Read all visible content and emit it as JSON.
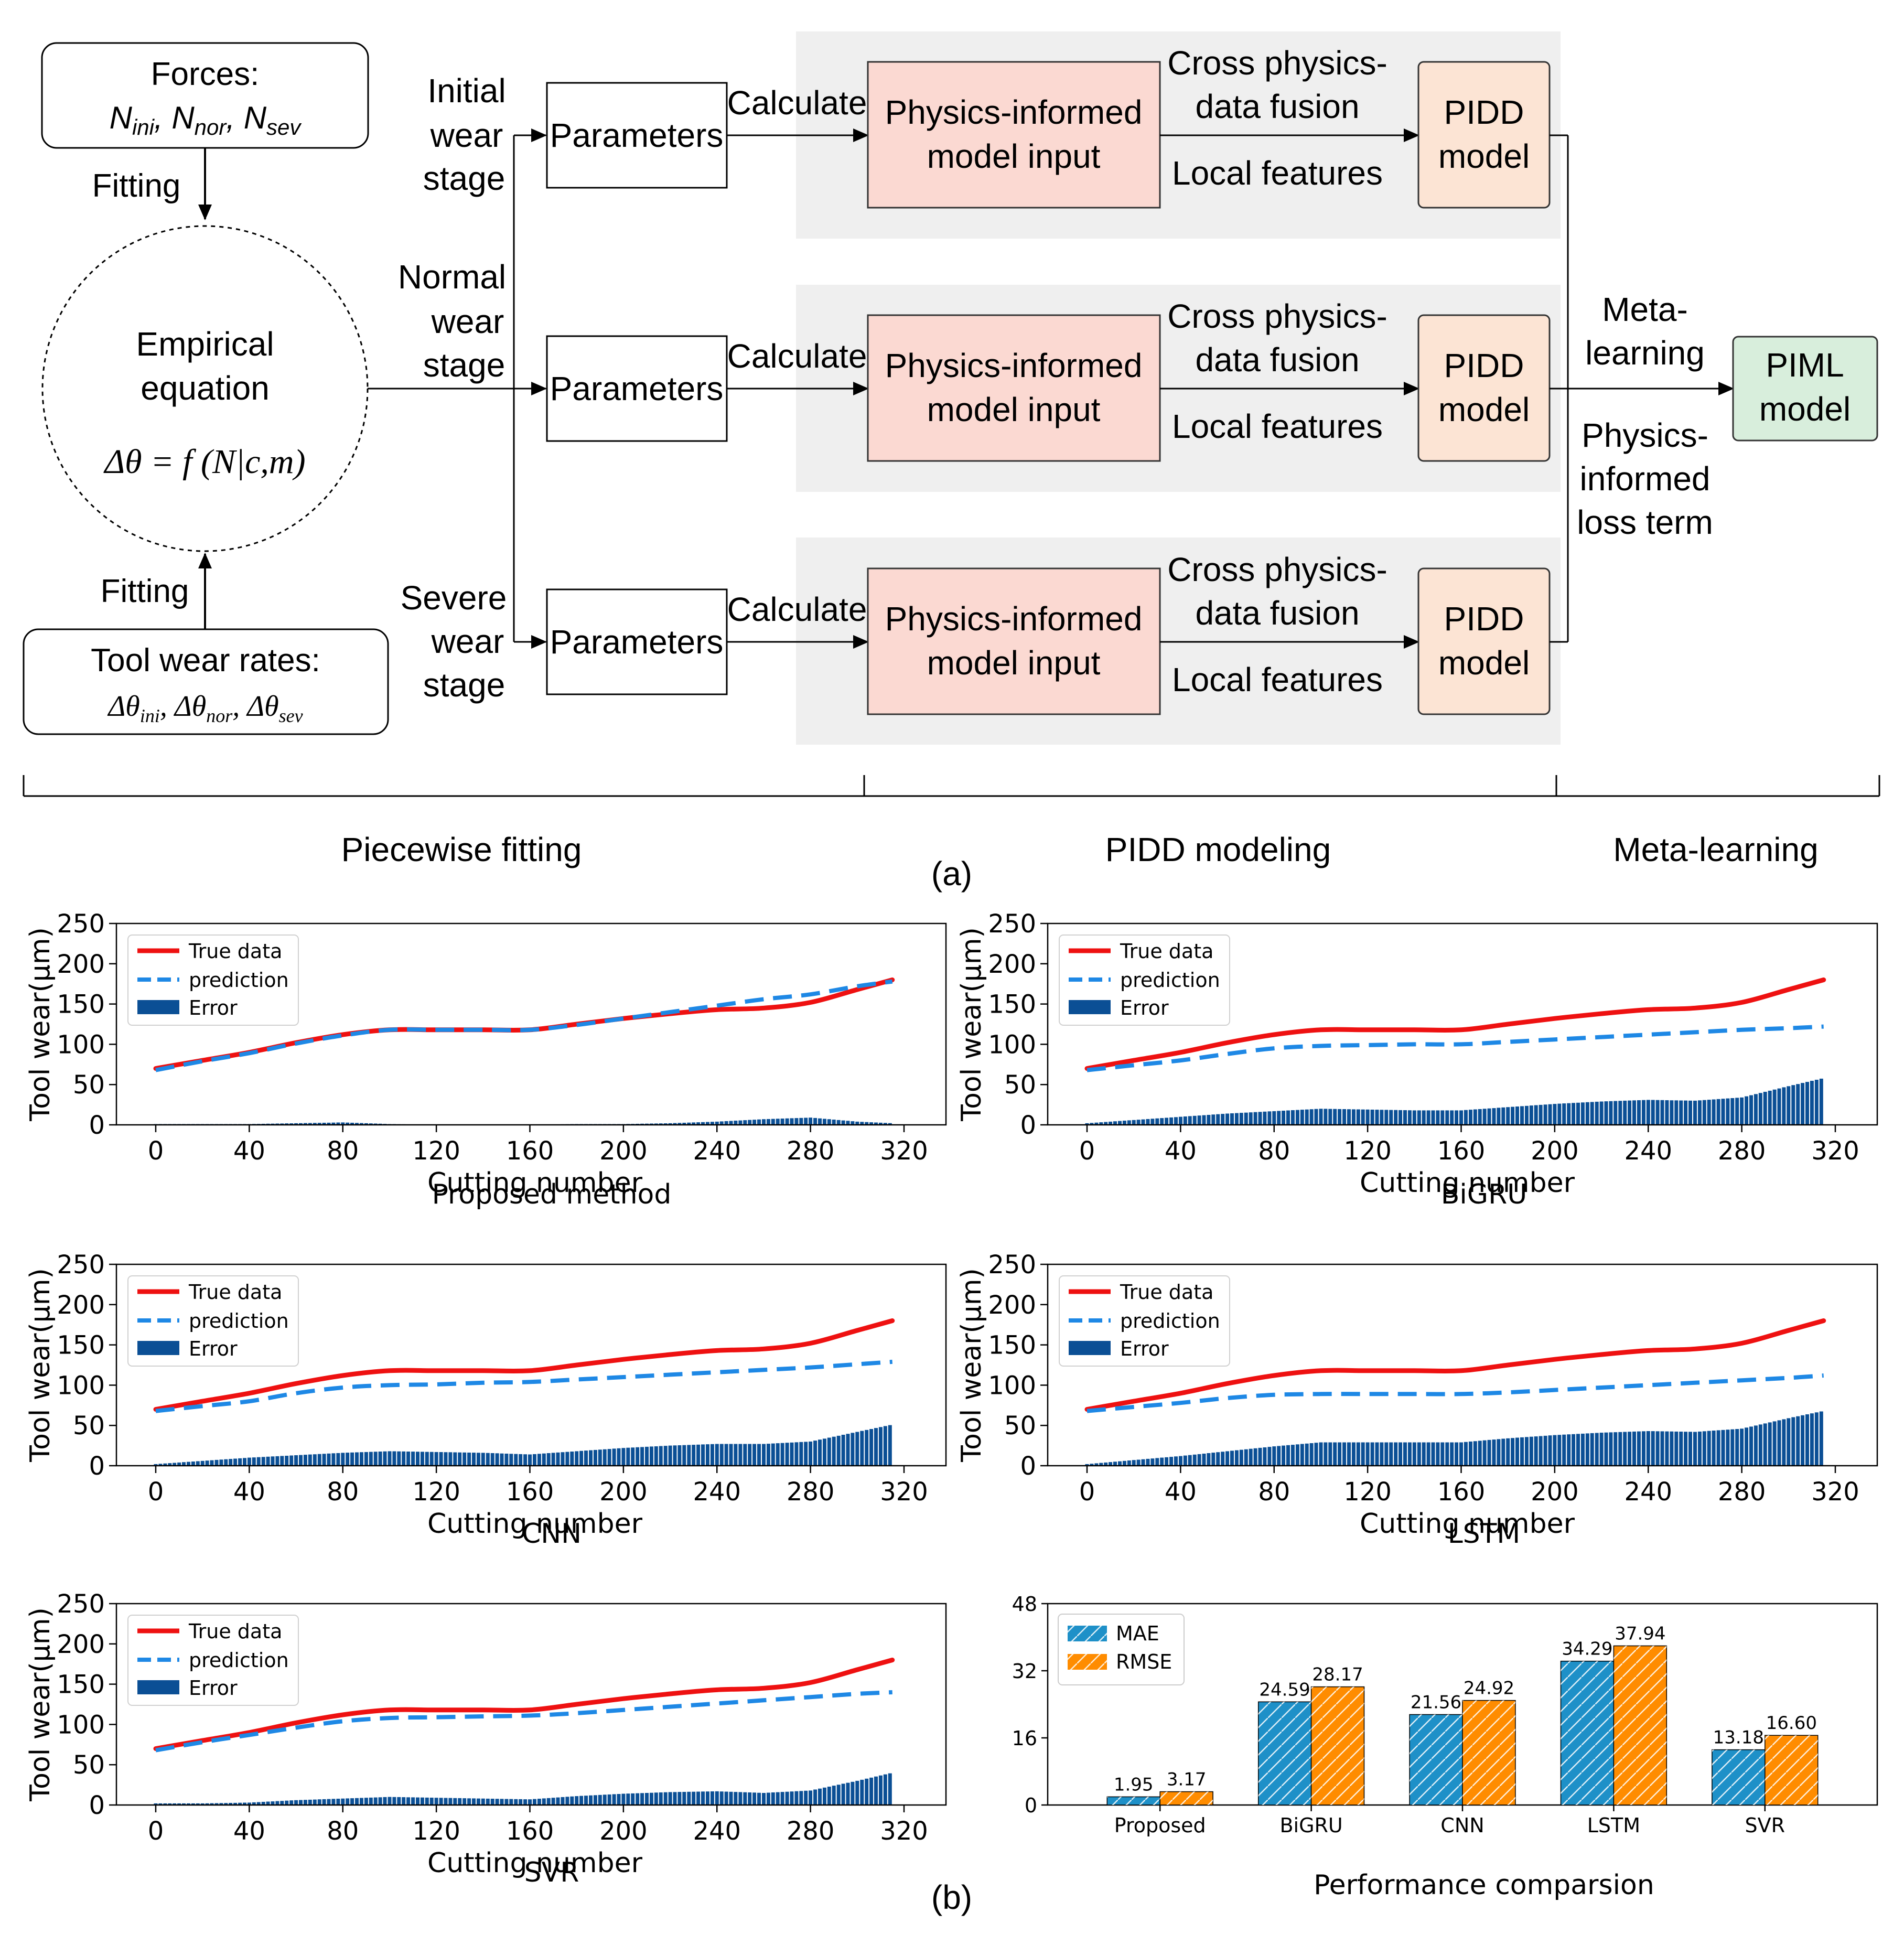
{
  "panel_a": {
    "caption": "(a)",
    "forces_box": {
      "title": "Forces:",
      "formula": "Nini, Nnor, Nsev"
    },
    "fitting_top": "Fitting",
    "fitting_bottom": "Fitting",
    "empirical": {
      "line1": "Empirical",
      "line2": "equation",
      "formula": "Δθ = f (N|c,m)"
    },
    "rates_box": {
      "title": "Tool wear rates:",
      "formula": "Δθini, Δθnor, Δθsev"
    },
    "stages": [
      {
        "line1": "Initial",
        "line2": "wear",
        "line3": "stage"
      },
      {
        "line1": "Normal",
        "line2": "wear",
        "line3": "stage"
      },
      {
        "line1": "Severe",
        "line2": "wear",
        "line3": "stage"
      }
    ],
    "parameters_label": "Parameters",
    "calculate_label": "Calculate",
    "pim_input": {
      "line1": "Physics-informed",
      "line2": "model input"
    },
    "fusion": {
      "line1": "Cross physics-",
      "line2": "data fusion"
    },
    "local_features": "Local features",
    "pidd_model": {
      "line1": "PIDD",
      "line2": "model"
    },
    "meta_learning": {
      "line1": "Meta-",
      "line2": "learning"
    },
    "loss_term": {
      "line1": "Physics-",
      "line2": "informed",
      "line3": "loss term"
    },
    "piml_model": {
      "line1": "PIML",
      "line2": "model"
    },
    "sections": [
      "Piecewise fitting",
      "PIDD modeling",
      "Meta-learning"
    ],
    "colors": {
      "band": "#efefef",
      "pink": "#fbd9d2",
      "peach": "#fce4d4",
      "green": "#d8eedc"
    }
  },
  "panel_b": {
    "caption": "(b)",
    "legend": [
      "True data",
      "prediction",
      "Error"
    ],
    "xlabel": "Cutting number",
    "ylabel": "Tool wear(µm)",
    "bar_title": "Performance comparsion",
    "bar_legend": [
      "MAE",
      "RMSE"
    ],
    "colors": {
      "true": "#ee1111",
      "pred": "#1e88e5",
      "error": "#0b4f95",
      "mae": "#1e90c8",
      "rmse": "#ff8c00"
    }
  },
  "chart_data": [
    {
      "type": "line",
      "title": "Proposed method",
      "xlabel": "Cutting number",
      "ylabel": "Tool wear(µm)",
      "xlim": [
        0,
        320
      ],
      "ylim": [
        0,
        250
      ],
      "xticks": [
        0,
        40,
        80,
        120,
        160,
        200,
        240,
        280,
        320
      ],
      "yticks": [
        0,
        50,
        100,
        150,
        200,
        250
      ],
      "x": [
        0,
        20,
        40,
        60,
        80,
        100,
        120,
        140,
        160,
        180,
        200,
        220,
        240,
        260,
        280,
        300,
        315
      ],
      "series": [
        {
          "name": "True data",
          "values": [
            70,
            80,
            90,
            102,
            112,
            118,
            118,
            118,
            118,
            125,
            132,
            138,
            143,
            145,
            152,
            168,
            180
          ]
        },
        {
          "name": "prediction",
          "values": [
            68,
            79,
            89,
            101,
            111,
            118,
            118,
            118,
            118,
            124,
            132,
            140,
            148,
            156,
            162,
            172,
            178
          ]
        },
        {
          "name": "Error",
          "values": [
            1,
            1,
            1,
            2,
            3,
            1,
            0,
            0,
            0,
            1,
            1,
            2,
            4,
            7,
            9,
            4,
            2
          ]
        }
      ]
    },
    {
      "type": "line",
      "title": "BiGRU",
      "xlabel": "Cutting number",
      "ylabel": "Tool wear(µm)",
      "xlim": [
        0,
        320
      ],
      "ylim": [
        0,
        250
      ],
      "xticks": [
        0,
        40,
        80,
        120,
        160,
        200,
        240,
        280,
        320
      ],
      "yticks": [
        0,
        50,
        100,
        150,
        200,
        250
      ],
      "x": [
        0,
        20,
        40,
        60,
        80,
        100,
        120,
        140,
        160,
        180,
        200,
        220,
        240,
        260,
        280,
        300,
        315
      ],
      "series": [
        {
          "name": "True data",
          "values": [
            70,
            80,
            90,
            102,
            112,
            118,
            118,
            118,
            118,
            125,
            132,
            138,
            143,
            145,
            152,
            168,
            180
          ]
        },
        {
          "name": "prediction",
          "values": [
            68,
            74,
            80,
            88,
            95,
            98,
            99,
            100,
            100,
            103,
            106,
            109,
            112,
            115,
            118,
            120,
            122
          ]
        },
        {
          "name": "Error",
          "values": [
            2,
            6,
            10,
            14,
            17,
            20,
            19,
            18,
            18,
            22,
            26,
            29,
            31,
            30,
            34,
            48,
            58
          ]
        }
      ]
    },
    {
      "type": "line",
      "title": "CNN",
      "xlabel": "Cutting number",
      "ylabel": "Tool wear(µm)",
      "xlim": [
        0,
        320
      ],
      "ylim": [
        0,
        250
      ],
      "xticks": [
        0,
        40,
        80,
        120,
        160,
        200,
        240,
        280,
        320
      ],
      "yticks": [
        0,
        50,
        100,
        150,
        200,
        250
      ],
      "x": [
        0,
        20,
        40,
        60,
        80,
        100,
        120,
        140,
        160,
        180,
        200,
        220,
        240,
        260,
        280,
        300,
        315
      ],
      "series": [
        {
          "name": "True data",
          "values": [
            70,
            80,
            90,
            102,
            112,
            118,
            118,
            118,
            118,
            125,
            132,
            138,
            143,
            145,
            152,
            168,
            180
          ]
        },
        {
          "name": "prediction",
          "values": [
            68,
            74,
            80,
            90,
            97,
            100,
            101,
            103,
            104,
            107,
            110,
            113,
            116,
            119,
            122,
            126,
            129
          ]
        },
        {
          "name": "Error",
          "values": [
            2,
            6,
            10,
            13,
            16,
            18,
            17,
            16,
            14,
            18,
            22,
            25,
            27,
            27,
            30,
            42,
            51
          ]
        }
      ]
    },
    {
      "type": "line",
      "title": "LSTM",
      "xlabel": "Cutting number",
      "ylabel": "Tool wear(µm)",
      "xlim": [
        0,
        320
      ],
      "ylim": [
        0,
        250
      ],
      "xticks": [
        0,
        40,
        80,
        120,
        160,
        200,
        240,
        280,
        320
      ],
      "yticks": [
        0,
        50,
        100,
        150,
        200,
        250
      ],
      "x": [
        0,
        20,
        40,
        60,
        80,
        100,
        120,
        140,
        160,
        180,
        200,
        220,
        240,
        260,
        280,
        300,
        315
      ],
      "series": [
        {
          "name": "True data",
          "values": [
            70,
            80,
            90,
            102,
            112,
            118,
            118,
            118,
            118,
            125,
            132,
            138,
            143,
            145,
            152,
            168,
            180
          ]
        },
        {
          "name": "prediction",
          "values": [
            68,
            73,
            78,
            84,
            88,
            89,
            89,
            89,
            89,
            91,
            94,
            97,
            100,
            103,
            106,
            109,
            112
          ]
        },
        {
          "name": "Error",
          "values": [
            2,
            7,
            12,
            18,
            24,
            29,
            29,
            29,
            29,
            34,
            38,
            41,
            43,
            42,
            46,
            59,
            68
          ]
        }
      ]
    },
    {
      "type": "line",
      "title": "SVR",
      "xlabel": "Cutting number",
      "ylabel": "Tool wear(µm)",
      "xlim": [
        0,
        320
      ],
      "ylim": [
        0,
        250
      ],
      "xticks": [
        0,
        40,
        80,
        120,
        160,
        200,
        240,
        280,
        320
      ],
      "yticks": [
        0,
        50,
        100,
        150,
        200,
        250
      ],
      "x": [
        0,
        20,
        40,
        60,
        80,
        100,
        120,
        140,
        160,
        180,
        200,
        220,
        240,
        260,
        280,
        300,
        315
      ],
      "series": [
        {
          "name": "True data",
          "values": [
            70,
            80,
            90,
            102,
            112,
            118,
            118,
            118,
            118,
            125,
            132,
            138,
            143,
            145,
            152,
            168,
            180
          ]
        },
        {
          "name": "prediction",
          "values": [
            68,
            78,
            87,
            96,
            104,
            108,
            109,
            110,
            111,
            114,
            118,
            122,
            126,
            130,
            134,
            138,
            140
          ]
        },
        {
          "name": "Error",
          "values": [
            2,
            2,
            3,
            6,
            8,
            10,
            9,
            8,
            7,
            11,
            14,
            16,
            17,
            15,
            18,
            30,
            40
          ]
        }
      ]
    },
    {
      "type": "bar",
      "title": "Performance comparsion",
      "categories": [
        "Proposed",
        "BiGRU",
        "CNN",
        "LSTM",
        "SVR"
      ],
      "yticks": [
        0,
        16,
        32,
        48
      ],
      "ylim": [
        0,
        48
      ],
      "series": [
        {
          "name": "MAE",
          "values": [
            1.95,
            24.59,
            21.56,
            34.29,
            13.18
          ],
          "labels": [
            "1.95",
            "24.59",
            "21.56",
            "34.29",
            "13.18"
          ]
        },
        {
          "name": "RMSE",
          "values": [
            3.17,
            28.17,
            24.92,
            37.94,
            16.6
          ],
          "labels": [
            "3.17",
            "28.17",
            "24.92",
            "37.94",
            "16.60"
          ]
        }
      ]
    }
  ]
}
